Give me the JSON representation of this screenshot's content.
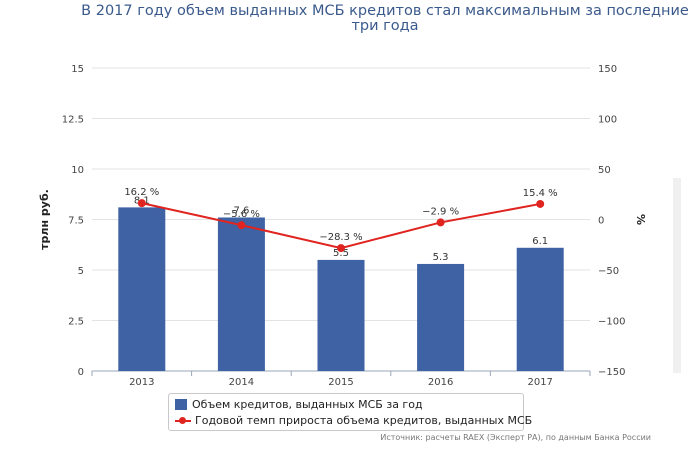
{
  "title": "В 2017 году объем выданных МСБ кредитов стал максимальным за последние три года",
  "source": "Источник: расчеты RAEX (Эксперт РА), по данным Банка России",
  "colors": {
    "bar": "#3e62a3",
    "line": "#e0241f",
    "grid": "#e3e3e3",
    "axis_text": "#444444"
  },
  "chart_data": {
    "type": "bar",
    "title": "В 2017 году объем выданных МСБ кредитов стал максимальным за последние три года",
    "categories": [
      "2013",
      "2014",
      "2015",
      "2016",
      "2017"
    ],
    "y_left": {
      "label": "трлн руб.",
      "range": [
        0,
        15
      ],
      "ticks": [
        "0",
        "2.5",
        "5",
        "7.5",
        "10",
        "12.5",
        "15"
      ],
      "tick_values": [
        0,
        2.5,
        5,
        7.5,
        10,
        12.5,
        15
      ]
    },
    "y_right": {
      "label": "%",
      "range": [
        -150,
        150
      ],
      "ticks": [
        "−150",
        "−100",
        "−50",
        "0",
        "50",
        "100",
        "150"
      ],
      "tick_values": [
        -150,
        -100,
        -50,
        0,
        50,
        100,
        150
      ]
    },
    "grid": true,
    "legend_position": "bottom",
    "series": [
      {
        "name": "Объем кредитов, выданных МСБ за год",
        "type": "bar",
        "axis": "left",
        "values": [
          8.1,
          7.6,
          5.5,
          5.3,
          6.1
        ],
        "labels": [
          "8.1",
          "7.6",
          "5.5",
          "5.3",
          "6.1"
        ]
      },
      {
        "name": "Годовой темп прироста объема кредитов, выданных МСБ",
        "type": "line",
        "axis": "right",
        "values": [
          16.2,
          -5.6,
          -28.3,
          -2.9,
          15.4
        ],
        "labels": [
          "16.2 %",
          "−5.6 %",
          "−28.3 %",
          "−2.9 %",
          "15.4 %"
        ]
      }
    ]
  }
}
